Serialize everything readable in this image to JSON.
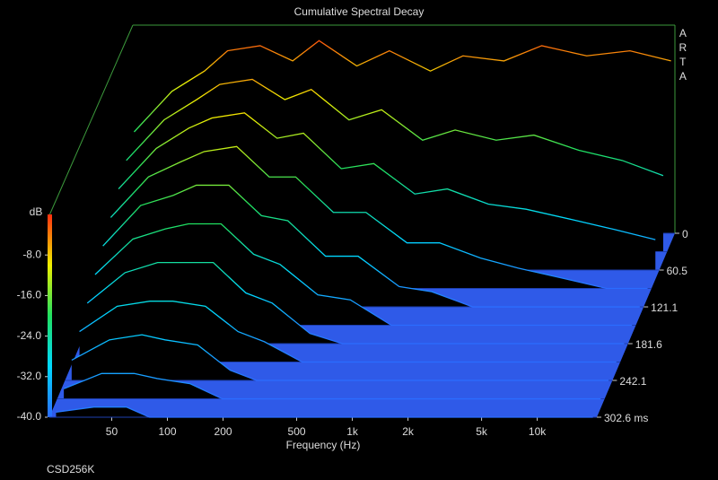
{
  "chart_data": {
    "type": "waterfall",
    "title": "Cumulative Spectral Decay",
    "xlabel": "Frequency (Hz)",
    "ylabel": "dB",
    "watermark": "ARTA",
    "footer": "CSD256K",
    "xscale": "log",
    "xlim": [
      23,
      21000
    ],
    "xticks": [
      50,
      100,
      200,
      500,
      {
        "value": 1000,
        "label": "1k"
      },
      {
        "value": 2000,
        "label": "2k"
      },
      {
        "value": 5000,
        "label": "5k"
      },
      {
        "value": 10000,
        "label": "10k"
      }
    ],
    "ylim": [
      -40,
      0
    ],
    "yticks": [
      {
        "value": -8,
        "label": "-8.0"
      },
      {
        "value": -16,
        "label": "-16.0"
      },
      {
        "value": -24,
        "label": "-24.0"
      },
      {
        "value": -32,
        "label": "-32.0"
      },
      {
        "value": -40,
        "label": "-40.0"
      }
    ],
    "zlim": [
      0,
      302.6
    ],
    "zticks": [
      0,
      60.5,
      121.1,
      181.6,
      242.1,
      {
        "value": 302.6,
        "label": "302.6 ms"
      }
    ],
    "colormap": [
      "#2b6cff",
      "#00d8ff",
      "#20e060",
      "#f0f000",
      "#ff3010"
    ],
    "floor_color": "#2f5ae8",
    "x": [
      25,
      40,
      60,
      80,
      120,
      180,
      250,
      400,
      600,
      1000,
      1500,
      2500,
      4000,
      7000,
      12000,
      20000
    ],
    "series": [
      {
        "time": 0,
        "values": [
          -20,
          -12,
          -8,
          -4,
          -3,
          -6,
          -2,
          -7,
          -4,
          -8,
          -5,
          -6,
          -3,
          -5,
          -4,
          -6
        ]
      },
      {
        "time": 30.3,
        "values": [
          -22,
          -14,
          -10,
          -7,
          -6,
          -10,
          -8,
          -14,
          -12,
          -18,
          -16,
          -18,
          -17,
          -20,
          -22,
          -25
        ]
      },
      {
        "time": 60.5,
        "values": [
          -24,
          -16,
          -12,
          -10,
          -9,
          -14,
          -13,
          -20,
          -19,
          -25,
          -24,
          -27,
          -28,
          -30,
          -32,
          -34
        ]
      },
      {
        "time": 90.8,
        "values": [
          -26,
          -18,
          -15,
          -13,
          -12,
          -18,
          -18,
          -25,
          -25,
          -31,
          -31,
          -34,
          -36,
          -38,
          -40,
          -40
        ]
      },
      {
        "time": 121.1,
        "values": [
          -28,
          -20,
          -18,
          -16,
          -16,
          -22,
          -23,
          -30,
          -30,
          -36,
          -37,
          -40,
          -40,
          -40,
          -40,
          -40
        ]
      },
      {
        "time": 151.3,
        "values": [
          -30,
          -23,
          -21,
          -20,
          -20,
          -26,
          -28,
          -34,
          -35,
          -40,
          -40,
          -40,
          -40,
          -40,
          -40,
          -40
        ]
      },
      {
        "time": 181.6,
        "values": [
          -32,
          -26,
          -24,
          -24,
          -24,
          -30,
          -32,
          -38,
          -40,
          -40,
          -40,
          -40,
          -40,
          -40,
          -40,
          -40
        ]
      },
      {
        "time": 211.8,
        "values": [
          -34,
          -29,
          -28,
          -28,
          -29,
          -34,
          -36,
          -40,
          -40,
          -40,
          -40,
          -40,
          -40,
          -40,
          -40,
          -40
        ]
      },
      {
        "time": 242.1,
        "values": [
          -36,
          -32,
          -31,
          -32,
          -33,
          -38,
          -40,
          -40,
          -40,
          -40,
          -40,
          -40,
          -40,
          -40,
          -40,
          -40
        ]
      },
      {
        "time": 272.4,
        "values": [
          -38,
          -35,
          -35,
          -36,
          -37,
          -40,
          -40,
          -40,
          -40,
          -40,
          -40,
          -40,
          -40,
          -40,
          -40,
          -40
        ]
      },
      {
        "time": 302.6,
        "values": [
          -39,
          -38,
          -38,
          -40,
          -40,
          -40,
          -40,
          -40,
          -40,
          -40,
          -40,
          -40,
          -40,
          -40,
          -40,
          -40
        ]
      }
    ]
  }
}
